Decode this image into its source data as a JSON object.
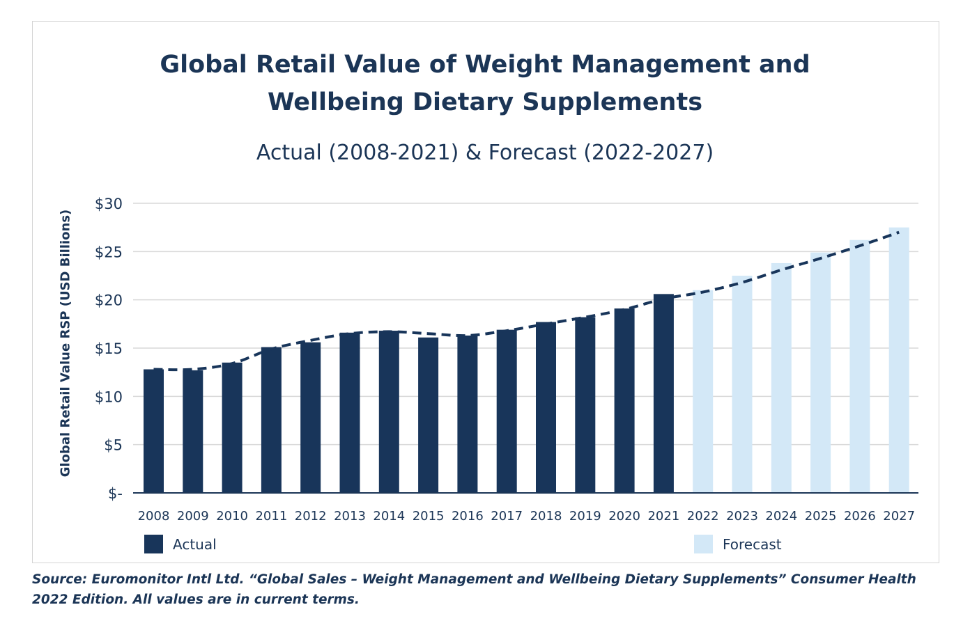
{
  "title_line1": "Global Retail Value of Weight Management and",
  "title_line2": "Wellbeing Dietary Supplements",
  "subtitle": "Actual (2008-2021) & Forecast (2022-2027)",
  "legend": {
    "actual": "Actual",
    "forecast": "Forecast"
  },
  "source_line1": "Source: Euromonitor Intl Ltd. “Global Sales – Weight Management and Wellbeing Dietary Supplements” Consumer Health",
  "source_line2": "2022 Edition. All values are in current terms.",
  "colors": {
    "actual": "#18355a",
    "forecast": "#d3e8f7",
    "trend": "#18355a",
    "grid": "#d9d9d9",
    "axis": "#1b3556"
  },
  "chart_data": {
    "type": "bar",
    "title": "Global Retail Value of Weight Management and Wellbeing Dietary Supplements",
    "subtitle": "Actual (2008-2021) & Forecast (2022-2027)",
    "ylabel": "Global Retail Value RSP (USD Billions)",
    "xlabel": "",
    "ylim": [
      0,
      30
    ],
    "yticks": [
      0,
      5,
      10,
      15,
      20,
      25,
      30
    ],
    "ytick_labels": [
      "$-",
      "$5",
      "$10",
      "$15",
      "$20",
      "$25",
      "$30"
    ],
    "grid": "horizontal",
    "legend_position": "bottom",
    "categories": [
      "2008",
      "2009",
      "2010",
      "2011",
      "2012",
      "2013",
      "2014",
      "2015",
      "2016",
      "2017",
      "2018",
      "2019",
      "2020",
      "2021",
      "2022",
      "2023",
      "2024",
      "2025",
      "2026",
      "2027"
    ],
    "series": [
      {
        "name": "Actual",
        "type": "bar",
        "values": [
          12.8,
          12.7,
          13.5,
          15.1,
          15.6,
          16.6,
          16.8,
          16.1,
          16.3,
          16.9,
          17.7,
          18.2,
          19.1,
          20.6,
          null,
          null,
          null,
          null,
          null,
          null
        ]
      },
      {
        "name": "Forecast",
        "type": "bar",
        "values": [
          null,
          null,
          null,
          null,
          null,
          null,
          null,
          null,
          null,
          null,
          null,
          null,
          null,
          null,
          21.0,
          22.5,
          23.8,
          24.9,
          26.2,
          27.5
        ]
      },
      {
        "type": "dashed-trendline",
        "values": [
          12.8,
          12.8,
          13.4,
          14.9,
          15.8,
          16.5,
          16.7,
          16.5,
          16.3,
          16.8,
          17.5,
          18.2,
          19.0,
          20.1,
          20.8,
          21.8,
          23.1,
          24.3,
          25.6,
          27.0
        ]
      }
    ]
  }
}
